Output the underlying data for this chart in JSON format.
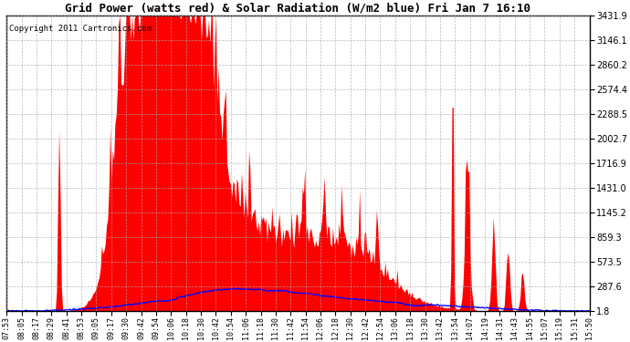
{
  "title": "Grid Power (watts red) & Solar Radiation (W/m2 blue) Fri Jan 7 16:10",
  "copyright": "Copyright 2011 Cartronics.com",
  "background_color": "#ffffff",
  "plot_bg_color": "#ffffff",
  "yticks": [
    1.8,
    287.6,
    573.5,
    859.3,
    1145.2,
    1431.0,
    1716.9,
    2002.7,
    2288.5,
    2574.4,
    2860.2,
    3146.1,
    3431.9
  ],
  "ymax": 3431.9,
  "ymin": 1.8,
  "grid_color": "#aaaaaa",
  "red_fill_color": "#ff0000",
  "blue_line_color": "#0000ff",
  "x_labels": [
    "07:53",
    "08:05",
    "08:17",
    "08:29",
    "08:41",
    "08:53",
    "09:05",
    "09:17",
    "09:30",
    "09:42",
    "09:54",
    "10:06",
    "10:18",
    "10:30",
    "10:42",
    "10:54",
    "11:06",
    "11:18",
    "11:30",
    "11:42",
    "11:54",
    "12:06",
    "12:18",
    "12:30",
    "12:42",
    "12:54",
    "13:06",
    "13:18",
    "13:30",
    "13:42",
    "13:54",
    "14:07",
    "14:19",
    "14:31",
    "14:43",
    "14:55",
    "15:07",
    "15:19",
    "15:31",
    "15:50"
  ],
  "n_points": 480
}
